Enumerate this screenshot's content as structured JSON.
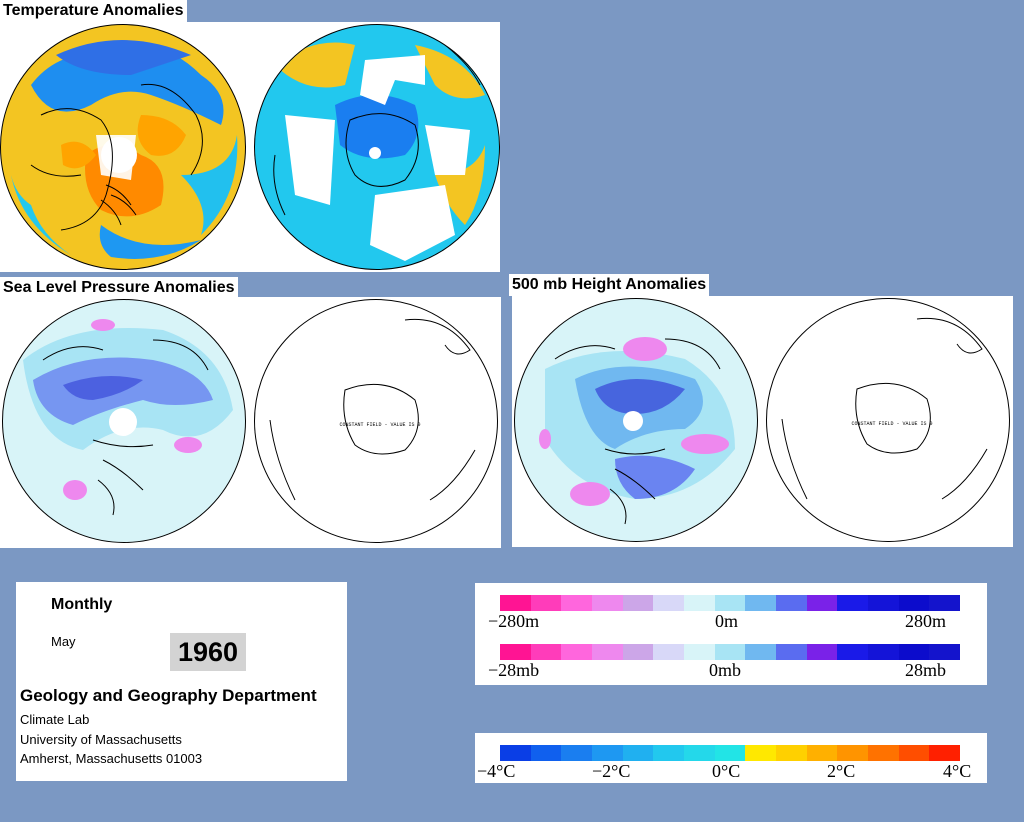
{
  "titles": {
    "temperature": "Temperature Anomalies",
    "slp": "Sea Level Pressure Anomalies",
    "height500": "500 mb Height Anomalies"
  },
  "constant_field_label": "CONSTANT FIELD - VALUE IS 0",
  "info": {
    "period": "Monthly",
    "month": "May",
    "year": "1960",
    "department": "Geology and Geography Department",
    "lines": [
      "Climate Lab",
      "University of Massachusetts",
      "Amherst, Massachusetts 01003"
    ]
  },
  "legend_height": {
    "min_label": "−280m",
    "mid_label": "0m",
    "max_label": "280m",
    "colors": [
      "#ff1493",
      "#ff3cba",
      "#ff66dd",
      "#ee88ee",
      "#cca6e8",
      "#d8d8f8",
      "#d8f4f8",
      "#a8e4f4",
      "#70b8f0",
      "#5a6cf0",
      "#7a22e8",
      "#1a1ae8",
      "#1414d8",
      "#0c0ccc",
      "#1414cc"
    ]
  },
  "legend_pressure": {
    "min_label": "−28mb",
    "mid_label": "0mb",
    "max_label": "28mb",
    "colors": [
      "#ff1493",
      "#ff3cba",
      "#ff66dd",
      "#ee88ee",
      "#cca6e8",
      "#d8d8f8",
      "#d8f4f8",
      "#a8e4f4",
      "#70b8f0",
      "#5a6cf0",
      "#7a22e8",
      "#1a1ae8",
      "#1414d8",
      "#0c0ccc",
      "#1414cc"
    ]
  },
  "legend_temperature": {
    "labels": [
      "−4°C",
      "−2°C",
      "0°C",
      "2°C",
      "4°C"
    ],
    "colors": [
      "#0a3ee6",
      "#1060ee",
      "#1a7ef0",
      "#1e98f2",
      "#20b0f0",
      "#22c8ee",
      "#24d8ea",
      "#22e4e6",
      "#ffe800",
      "#ffd000",
      "#ffb000",
      "#ff9400",
      "#ff7200",
      "#ff4e00",
      "#ff2000"
    ]
  }
}
